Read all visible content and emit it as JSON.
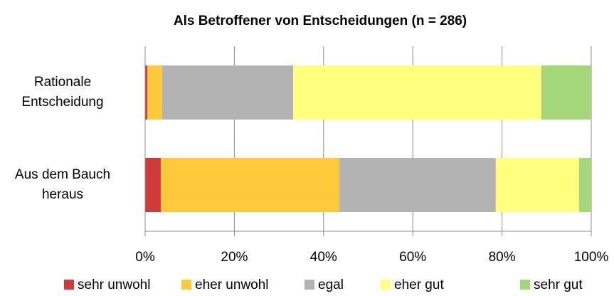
{
  "chart_data": {
    "type": "stacked_barh",
    "title": "Als Betroffener von Entscheidungen (n = 286)",
    "categories": [
      "Rationale\nEntscheidung",
      "Aus dem Bauch\nheraus"
    ],
    "series": [
      {
        "name": "sehr unwohl",
        "color": "#d13a3a",
        "values": [
          0.5,
          3.5
        ]
      },
      {
        "name": "eher unwohl",
        "color": "#ffc93c",
        "values": [
          3.3,
          40.0
        ]
      },
      {
        "name": "egal",
        "color": "#b3b3b3",
        "values": [
          29.4,
          35.1
        ]
      },
      {
        "name": "eher gut",
        "color": "#ffff80",
        "values": [
          55.6,
          18.7
        ]
      },
      {
        "name": "sehr gut",
        "color": "#a4d67a",
        "values": [
          11.2,
          2.7
        ]
      }
    ],
    "xlim": [
      0,
      100
    ],
    "xticks": [
      {
        "value": 0,
        "label": "0%"
      },
      {
        "value": 20,
        "label": "20%"
      },
      {
        "value": 40,
        "label": "40%"
      },
      {
        "value": 60,
        "label": "60%"
      },
      {
        "value": 80,
        "label": "80%"
      },
      {
        "value": 100,
        "label": "100%"
      }
    ],
    "grid": true,
    "legend": "bottom"
  }
}
